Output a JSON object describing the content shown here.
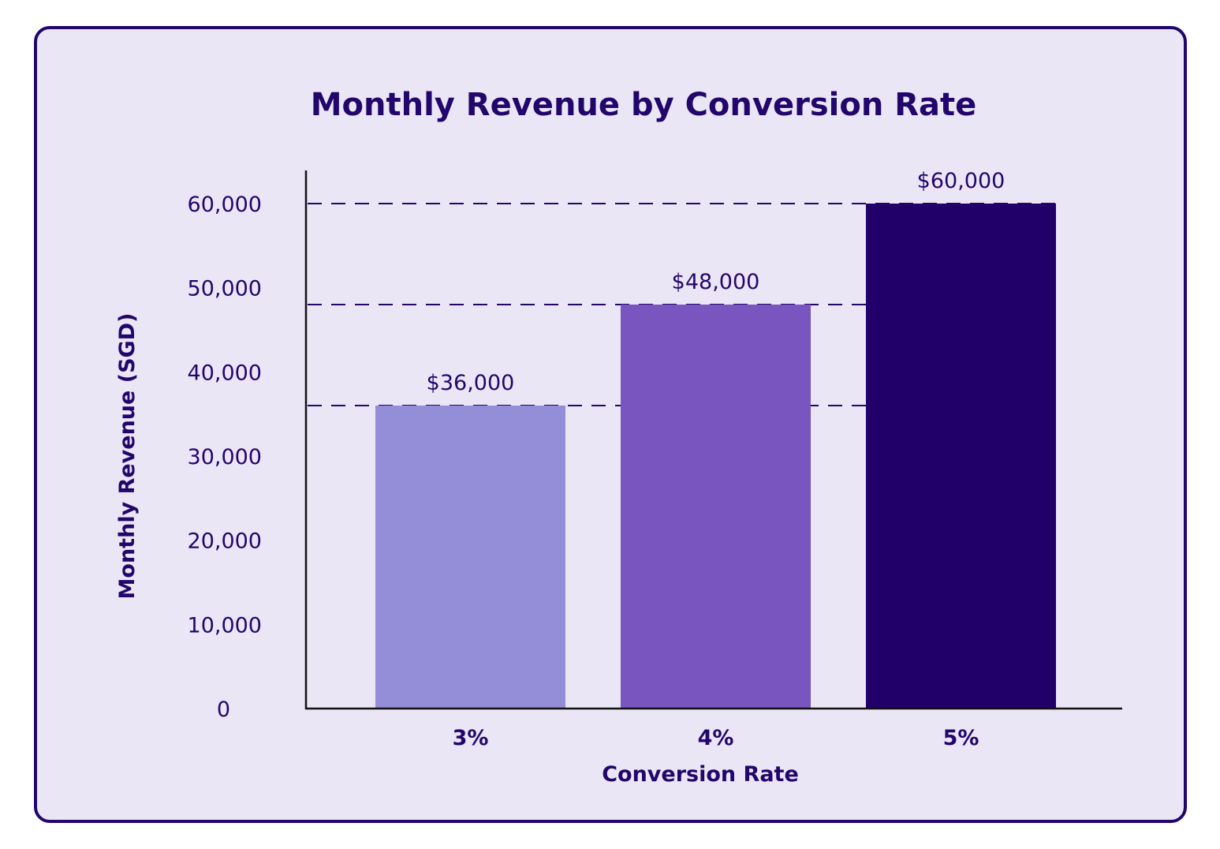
{
  "chart_data": {
    "type": "bar",
    "title": "Monthly Revenue by Conversion Rate",
    "xlabel": "Conversion Rate",
    "ylabel": "Monthly Revenue (SGD)",
    "categories": [
      "3%",
      "4%",
      "5%"
    ],
    "values": [
      36000,
      48000,
      60000
    ],
    "data_labels": [
      "$36,000",
      "$48,000",
      "$60,000"
    ],
    "ylim": [
      0,
      60000
    ],
    "yticks": [
      0,
      10000,
      20000,
      30000,
      40000,
      50000,
      60000
    ],
    "ytick_labels": [
      "0",
      "10,000",
      "20,000",
      "30,000",
      "40,000",
      "50,000",
      "60,000"
    ],
    "bar_colors": [
      "#948dd8",
      "#7855bf",
      "#22006a"
    ],
    "reference_lines": "dashed horizontal lines at each bar value",
    "grid": false,
    "legend": "none"
  },
  "colors": {
    "text": "#22066b",
    "background": "#ebe6f5",
    "border": "#22066b"
  }
}
